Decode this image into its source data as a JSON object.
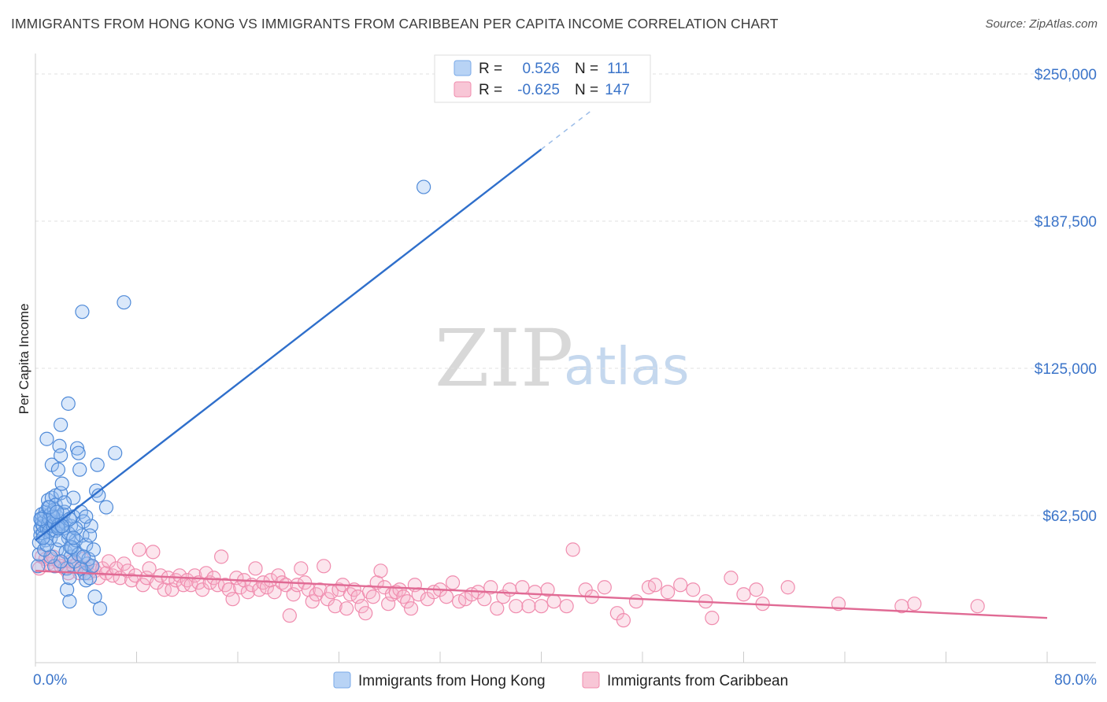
{
  "title": "IMMIGRANTS FROM HONG KONG VS IMMIGRANTS FROM CARIBBEAN PER CAPITA INCOME CORRELATION CHART",
  "source": "Source: ZipAtlas.com",
  "watermark": {
    "zip": "ZIP",
    "atlas": "atlas"
  },
  "legend_stats": [
    {
      "r_label": "R =",
      "r_value": "0.526",
      "n_label": "N =",
      "n_value": "111",
      "color": "#7aaae8",
      "fill": "#b8d3f5"
    },
    {
      "r_label": "R =",
      "r_value": "-0.625",
      "n_label": "N =",
      "n_value": "147",
      "color": "#f08cae",
      "fill": "#f8c6d6"
    }
  ],
  "bottom_legend": [
    {
      "label": "Immigrants from Hong Kong",
      "color": "#7aaae8",
      "fill": "#b8d3f5"
    },
    {
      "label": "Immigrants from Caribbean",
      "color": "#f08cae",
      "fill": "#f8c6d6"
    }
  ],
  "chart_data": {
    "type": "scatter",
    "title": "IMMIGRANTS FROM HONG KONG VS IMMIGRANTS FROM CARIBBEAN PER CAPITA INCOME CORRELATION CHART",
    "xlabel": "",
    "ylabel": "Per Capita Income",
    "xlim": [
      0,
      80
    ],
    "ylim": [
      0,
      256000
    ],
    "x_tick_labels": [
      "0.0%",
      "80.0%"
    ],
    "y_ticks": [
      62500,
      125000,
      187500,
      250000
    ],
    "y_tick_labels": [
      "$62,500",
      "$125,000",
      "$187,500",
      "$250,000"
    ],
    "grid": "horizontal dashed",
    "legend_placement": "bottom-center",
    "series": [
      {
        "name": "Immigrants from Hong Kong",
        "color": "#3b74c9",
        "marker_fill": "#b8d3f5",
        "points": [
          [
            0.2,
            41000
          ],
          [
            0.3,
            46000
          ],
          [
            0.3,
            51000
          ],
          [
            0.4,
            54000
          ],
          [
            0.4,
            57000
          ],
          [
            0.5,
            59000
          ],
          [
            0.5,
            61000
          ],
          [
            0.5,
            63000
          ],
          [
            0.6,
            55000
          ],
          [
            0.6,
            58000
          ],
          [
            0.7,
            60000
          ],
          [
            0.7,
            62000
          ],
          [
            0.8,
            52000
          ],
          [
            0.8,
            64000
          ],
          [
            0.9,
            57000
          ],
          [
            0.9,
            95000
          ],
          [
            1.0,
            59000
          ],
          [
            1.0,
            66000
          ],
          [
            1.0,
            69000
          ],
          [
            1.1,
            61000
          ],
          [
            1.1,
            56000
          ],
          [
            1.2,
            53000
          ],
          [
            1.2,
            63000
          ],
          [
            1.3,
            70000
          ],
          [
            1.3,
            84000
          ],
          [
            1.4,
            58000
          ],
          [
            1.4,
            60000
          ],
          [
            1.5,
            65000
          ],
          [
            1.5,
            59000
          ],
          [
            1.6,
            71000
          ],
          [
            1.6,
            67000
          ],
          [
            1.6,
            56000
          ],
          [
            1.7,
            48000
          ],
          [
            1.7,
            62000
          ],
          [
            1.8,
            58000
          ],
          [
            1.8,
            82000
          ],
          [
            1.9,
            92000
          ],
          [
            1.9,
            59000
          ],
          [
            2.0,
            88000
          ],
          [
            2.0,
            72000
          ],
          [
            2.0,
            101000
          ],
          [
            2.1,
            76000
          ],
          [
            2.1,
            60000
          ],
          [
            2.2,
            63000
          ],
          [
            2.2,
            57000
          ],
          [
            2.3,
            64000
          ],
          [
            2.4,
            59000
          ],
          [
            2.4,
            47000
          ],
          [
            2.5,
            40000
          ],
          [
            2.5,
            31000
          ],
          [
            2.6,
            110000
          ],
          [
            2.6,
            53000
          ],
          [
            2.7,
            36000
          ],
          [
            2.7,
            26000
          ],
          [
            2.8,
            58000
          ],
          [
            2.8,
            45000
          ],
          [
            2.9,
            49000
          ],
          [
            3.0,
            62000
          ],
          [
            3.0,
            70000
          ],
          [
            3.1,
            48000
          ],
          [
            3.1,
            43000
          ],
          [
            3.2,
            52000
          ],
          [
            3.3,
            91000
          ],
          [
            3.4,
            89000
          ],
          [
            3.4,
            46000
          ],
          [
            3.5,
            82000
          ],
          [
            3.6,
            64000
          ],
          [
            3.7,
            54000
          ],
          [
            3.8,
            60000
          ],
          [
            3.9,
            38000
          ],
          [
            4.0,
            35000
          ],
          [
            4.0,
            50000
          ],
          [
            4.1,
            42000
          ],
          [
            4.2,
            44000
          ],
          [
            4.3,
            36000
          ],
          [
            4.4,
            58000
          ],
          [
            4.5,
            41000
          ],
          [
            4.6,
            48000
          ],
          [
            4.7,
            28000
          ],
          [
            4.8,
            73000
          ],
          [
            4.9,
            84000
          ],
          [
            5.0,
            71000
          ],
          [
            5.1,
            23000
          ],
          [
            5.6,
            66000
          ],
          [
            6.3,
            89000
          ],
          [
            7.0,
            153000
          ],
          [
            3.7,
            149000
          ],
          [
            30.7,
            202000
          ],
          [
            1.5,
            41000
          ],
          [
            2.0,
            43000
          ],
          [
            2.8,
            49000
          ],
          [
            3.6,
            40000
          ],
          [
            4.3,
            54000
          ],
          [
            1.2,
            45000
          ],
          [
            0.7,
            48000
          ],
          [
            1.9,
            52000
          ],
          [
            2.6,
            55000
          ],
          [
            3.2,
            57000
          ],
          [
            0.9,
            50000
          ],
          [
            1.4,
            62000
          ],
          [
            2.3,
            68000
          ],
          [
            4.0,
            62000
          ],
          [
            3.8,
            45000
          ],
          [
            1.8,
            57000
          ],
          [
            2.7,
            61000
          ],
          [
            0.6,
            53000
          ],
          [
            1.1,
            66000
          ],
          [
            2.1,
            58000
          ],
          [
            3.0,
            53000
          ],
          [
            0.4,
            61000
          ],
          [
            1.7,
            64000
          ]
        ]
      },
      {
        "name": "Immigrants from Caribbean",
        "color": "#e0608a",
        "marker_fill": "#f8c6d6",
        "points": [
          [
            0.3,
            40000
          ],
          [
            0.5,
            45000
          ],
          [
            0.8,
            44000
          ],
          [
            1.0,
            42000
          ],
          [
            1.2,
            44000
          ],
          [
            1.4,
            45000
          ],
          [
            1.6,
            41000
          ],
          [
            1.8,
            43000
          ],
          [
            2.0,
            41000
          ],
          [
            2.3,
            40000
          ],
          [
            2.6,
            38000
          ],
          [
            2.8,
            43000
          ],
          [
            3.0,
            41000
          ],
          [
            3.3,
            42000
          ],
          [
            3.5,
            38000
          ],
          [
            3.7,
            44000
          ],
          [
            4.0,
            40000
          ],
          [
            4.2,
            38000
          ],
          [
            4.4,
            41000
          ],
          [
            4.7,
            39000
          ],
          [
            5.0,
            36000
          ],
          [
            5.3,
            40000
          ],
          [
            5.6,
            38000
          ],
          [
            5.8,
            43000
          ],
          [
            6.1,
            37000
          ],
          [
            6.4,
            40000
          ],
          [
            6.7,
            36000
          ],
          [
            7.0,
            42000
          ],
          [
            7.3,
            39000
          ],
          [
            7.6,
            35000
          ],
          [
            7.9,
            37000
          ],
          [
            8.2,
            48000
          ],
          [
            8.5,
            33000
          ],
          [
            8.8,
            36000
          ],
          [
            9.0,
            40000
          ],
          [
            9.3,
            47000
          ],
          [
            9.6,
            34000
          ],
          [
            9.9,
            37000
          ],
          [
            10.2,
            31000
          ],
          [
            10.5,
            36000
          ],
          [
            10.8,
            31000
          ],
          [
            11.1,
            35000
          ],
          [
            11.4,
            37000
          ],
          [
            11.7,
            33000
          ],
          [
            12.0,
            35000
          ],
          [
            12.3,
            33000
          ],
          [
            12.6,
            37000
          ],
          [
            12.9,
            34000
          ],
          [
            13.2,
            31000
          ],
          [
            13.5,
            38000
          ],
          [
            13.8,
            34000
          ],
          [
            14.1,
            36000
          ],
          [
            14.4,
            33000
          ],
          [
            14.7,
            45000
          ],
          [
            15.0,
            33000
          ],
          [
            15.3,
            31000
          ],
          [
            15.6,
            27000
          ],
          [
            15.9,
            36000
          ],
          [
            16.2,
            32000
          ],
          [
            16.5,
            35000
          ],
          [
            16.8,
            30000
          ],
          [
            17.1,
            33000
          ],
          [
            17.4,
            40000
          ],
          [
            17.7,
            31000
          ],
          [
            18.0,
            34000
          ],
          [
            18.3,
            32000
          ],
          [
            18.6,
            35000
          ],
          [
            18.9,
            30000
          ],
          [
            19.2,
            37000
          ],
          [
            19.5,
            34000
          ],
          [
            19.8,
            33000
          ],
          [
            20.1,
            20000
          ],
          [
            20.4,
            29000
          ],
          [
            20.7,
            33000
          ],
          [
            21.0,
            40000
          ],
          [
            21.3,
            34000
          ],
          [
            21.6,
            31000
          ],
          [
            21.9,
            26000
          ],
          [
            22.2,
            29000
          ],
          [
            22.5,
            31000
          ],
          [
            22.8,
            41000
          ],
          [
            23.1,
            27000
          ],
          [
            23.4,
            30000
          ],
          [
            23.7,
            24000
          ],
          [
            24.0,
            31000
          ],
          [
            24.3,
            33000
          ],
          [
            24.6,
            23000
          ],
          [
            24.9,
            29000
          ],
          [
            25.2,
            31000
          ],
          [
            25.5,
            28000
          ],
          [
            25.8,
            24000
          ],
          [
            26.1,
            21000
          ],
          [
            26.4,
            30000
          ],
          [
            26.7,
            28000
          ],
          [
            27.0,
            34000
          ],
          [
            27.3,
            39000
          ],
          [
            27.6,
            32000
          ],
          [
            27.9,
            25000
          ],
          [
            28.2,
            29000
          ],
          [
            28.5,
            30000
          ],
          [
            28.8,
            31000
          ],
          [
            29.1,
            28000
          ],
          [
            29.4,
            26000
          ],
          [
            29.7,
            23000
          ],
          [
            30.0,
            33000
          ],
          [
            30.3,
            29000
          ],
          [
            31.0,
            27000
          ],
          [
            31.5,
            30000
          ],
          [
            32.0,
            31000
          ],
          [
            32.5,
            28000
          ],
          [
            33.0,
            34000
          ],
          [
            33.5,
            26000
          ],
          [
            34.0,
            27000
          ],
          [
            34.5,
            29000
          ],
          [
            35.0,
            30000
          ],
          [
            35.5,
            27000
          ],
          [
            36.0,
            32000
          ],
          [
            36.5,
            23000
          ],
          [
            37.0,
            28000
          ],
          [
            37.5,
            31000
          ],
          [
            38.0,
            24000
          ],
          [
            38.5,
            32000
          ],
          [
            39.0,
            24000
          ],
          [
            39.5,
            30000
          ],
          [
            40.0,
            24000
          ],
          [
            40.5,
            31000
          ],
          [
            41.0,
            26000
          ],
          [
            42.5,
            48000
          ],
          [
            42.0,
            24000
          ],
          [
            43.5,
            31000
          ],
          [
            44.0,
            28000
          ],
          [
            45.0,
            32000
          ],
          [
            46.0,
            21000
          ],
          [
            46.5,
            18000
          ],
          [
            47.5,
            26000
          ],
          [
            48.5,
            32000
          ],
          [
            49.0,
            33000
          ],
          [
            50.0,
            30000
          ],
          [
            51.0,
            33000
          ],
          [
            52.0,
            31000
          ],
          [
            53.0,
            26000
          ],
          [
            53.5,
            19000
          ],
          [
            55.0,
            36000
          ],
          [
            56.0,
            29000
          ],
          [
            57.0,
            31000
          ],
          [
            57.5,
            25000
          ],
          [
            59.5,
            32000
          ],
          [
            63.5,
            25000
          ],
          [
            69.5,
            25000
          ],
          [
            74.5,
            24000
          ],
          [
            68.5,
            24000
          ]
        ]
      }
    ],
    "trend_lines": [
      {
        "series": "Immigrants from Hong Kong",
        "x": [
          0,
          40
        ],
        "y": [
          52000,
          218000
        ],
        "dashed_extension_to_x": 44
      },
      {
        "series": "Immigrants from Caribbean",
        "x": [
          0,
          80
        ],
        "y": [
          39000,
          19000
        ]
      }
    ]
  }
}
